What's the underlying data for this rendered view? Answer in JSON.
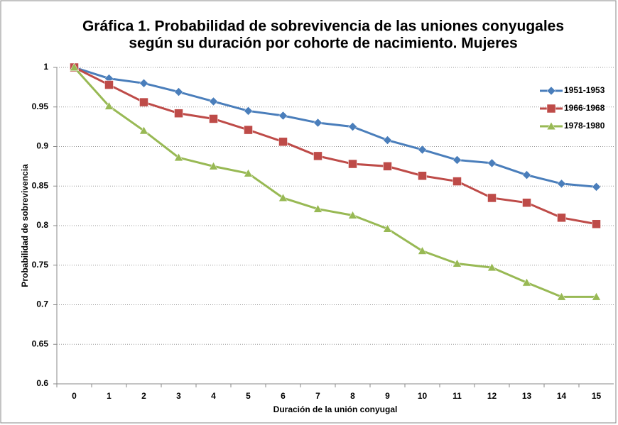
{
  "chart_data": {
    "type": "line",
    "title": "Gráfica 1. Probabilidad de sobrevivencia de las uniones conyugales",
    "subtitle": "según su duración por cohorte de nacimiento. Mujeres",
    "x_label": "Duración de la unión conyugal",
    "y_label": "Probabilidad de sobrevivencia",
    "categories": [
      "0",
      "1",
      "2",
      "3",
      "4",
      "5",
      "6",
      "7",
      "8",
      "9",
      "10",
      "11",
      "12",
      "13",
      "14",
      "15"
    ],
    "series": [
      {
        "name": "1951-1953",
        "color": "#4a7ebb",
        "marker": "diamond",
        "values": [
          1,
          0.986,
          0.98,
          0.969,
          0.957,
          0.945,
          0.939,
          0.93,
          0.925,
          0.908,
          0.896,
          0.883,
          0.879,
          0.864,
          0.853,
          0.849
        ]
      },
      {
        "name": "1966-1968",
        "color": "#be4b48",
        "marker": "square",
        "values": [
          1,
          0.978,
          0.956,
          0.942,
          0.935,
          0.921,
          0.906,
          0.888,
          0.878,
          0.875,
          0.863,
          0.856,
          0.835,
          0.829,
          0.81,
          0.802
        ]
      },
      {
        "name": "1978-1980",
        "color": "#98b954",
        "marker": "triangle",
        "values": [
          1,
          0.951,
          0.92,
          0.886,
          0.875,
          0.866,
          0.835,
          0.821,
          0.813,
          0.796,
          0.768,
          0.752,
          0.747,
          0.728,
          0.71,
          0.71
        ]
      }
    ],
    "ylim": [
      0.6,
      1
    ],
    "yticks": [
      0.6,
      0.65,
      0.7,
      0.75,
      0.8,
      0.85,
      0.9,
      0.95,
      1
    ],
    "grid": true,
    "legend": "upper right"
  }
}
